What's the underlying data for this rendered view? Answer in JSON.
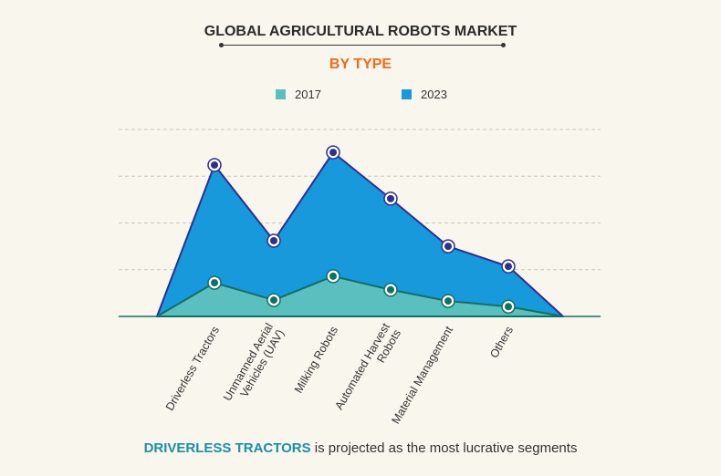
{
  "title": "GLOBAL AGRICULTURAL ROBOTS MARKET",
  "subtitle": "BY TYPE",
  "chart_data": {
    "type": "area",
    "categories": [
      [
        "Driverless Tractors"
      ],
      [
        "Unmanned Aerial",
        "Vehicles (UAV)"
      ],
      [
        "Milking Robots"
      ],
      [
        "Automated Harvest",
        "Robots"
      ],
      [
        "Material Management"
      ],
      [
        "Others"
      ]
    ],
    "series": [
      {
        "name": "2023",
        "color": "#1799db",
        "line": "#2e2f8f",
        "values": [
          3.24,
          1.62,
          3.51,
          2.52,
          1.5,
          1.07
        ]
      },
      {
        "name": "2017",
        "color": "#5bbfbf",
        "line": "#136f63",
        "values": [
          0.72,
          0.35,
          0.86,
          0.57,
          0.33,
          0.21
        ]
      }
    ],
    "ylim": [
      0,
      4
    ],
    "y_ticks_labeled": false,
    "grid": "horizontal dashed",
    "legend": "top-center"
  },
  "footer": {
    "highlight": "DRIVERLESS TRACTORS",
    "text": " is projected as the most lucrative segments"
  }
}
